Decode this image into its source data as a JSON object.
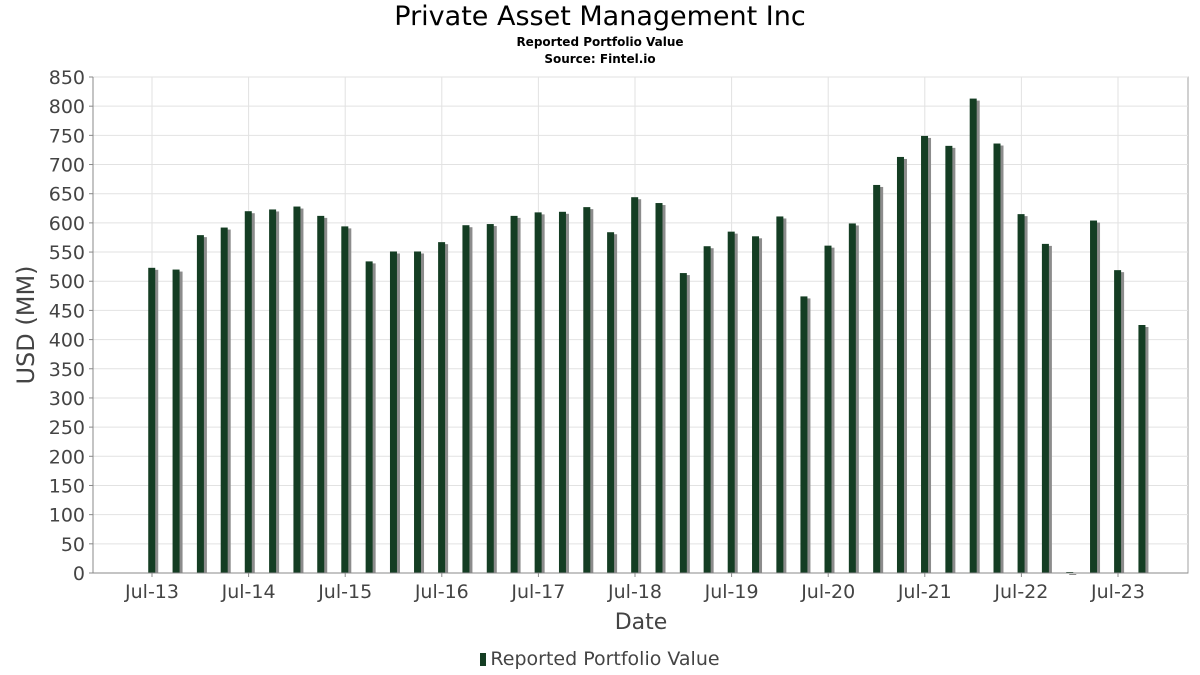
{
  "chart_data": {
    "type": "bar",
    "title": "Private Asset Management Inc",
    "subtitle": "Reported Portfolio Value",
    "source": "Source: Fintel.io",
    "xlabel": "Date",
    "ylabel": "USD (MM)",
    "ylim": [
      0,
      850
    ],
    "yticks": [
      0,
      50,
      100,
      150,
      200,
      250,
      300,
      350,
      400,
      450,
      500,
      550,
      600,
      650,
      700,
      750,
      800,
      850
    ],
    "xtick_labels": [
      "Jul-13",
      "Jul-14",
      "Jul-15",
      "Jul-16",
      "Jul-17",
      "Jul-18",
      "Jul-19",
      "Jul-20",
      "Jul-21",
      "Jul-22",
      "Jul-23"
    ],
    "grid": true,
    "legend_position": "bottom-center",
    "bar_color": "#143d23",
    "shadow_color": "#8c8c8c",
    "series": [
      {
        "name": "Reported Portfolio Value",
        "x": [
          "2013-06-30",
          "2013-09-30",
          "2013-12-31",
          "2014-03-31",
          "2014-06-30",
          "2014-09-30",
          "2014-12-31",
          "2015-03-31",
          "2015-06-30",
          "2015-09-30",
          "2015-12-31",
          "2016-03-31",
          "2016-06-30",
          "2016-09-30",
          "2016-12-31",
          "2017-03-31",
          "2017-06-30",
          "2017-09-30",
          "2017-12-31",
          "2018-03-31",
          "2018-06-30",
          "2018-09-30",
          "2018-12-31",
          "2019-03-31",
          "2019-06-30",
          "2019-09-30",
          "2019-12-31",
          "2020-03-31",
          "2020-06-30",
          "2020-09-30",
          "2020-12-31",
          "2021-03-31",
          "2021-06-30",
          "2021-09-30",
          "2021-12-31",
          "2022-03-31",
          "2022-06-30",
          "2022-09-30",
          "2022-12-31",
          "2023-03-31",
          "2023-06-30",
          "2023-09-30"
        ],
        "values": [
          523,
          520,
          579,
          592,
          620,
          623,
          628,
          612,
          594,
          534,
          551,
          551,
          567,
          596,
          598,
          612,
          618,
          619,
          627,
          584,
          644,
          634,
          514,
          560,
          585,
          577,
          611,
          474,
          561,
          599,
          665,
          713,
          749,
          732,
          813,
          736,
          615,
          564,
          0,
          604,
          519,
          425
        ]
      }
    ]
  }
}
